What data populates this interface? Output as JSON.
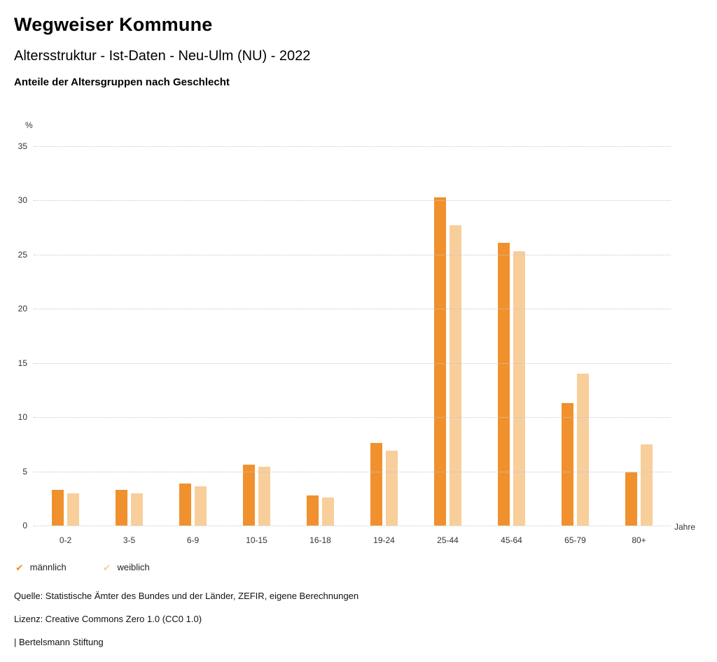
{
  "header": {
    "title": "Wegweiser Kommune",
    "subtitle": "Altersstruktur - Ist-Daten - Neu-Ulm (NU) - 2022",
    "subsubtitle": "Anteile der Altersgruppen nach Geschlecht"
  },
  "chart_data": {
    "type": "bar",
    "title": "Anteile der Altersgruppen nach Geschlecht",
    "unit_label": "%",
    "xlabel": "Jahre",
    "ylabel": "%",
    "categories": [
      "0-2",
      "3-5",
      "6-9",
      "10-15",
      "16-18",
      "19-24",
      "25-44",
      "45-64",
      "65-79",
      "80+"
    ],
    "series": [
      {
        "name": "männlich",
        "color": "#F0912D",
        "values": [
          3.3,
          3.3,
          3.9,
          5.6,
          2.8,
          7.6,
          30.3,
          26.1,
          11.3,
          4.9
        ]
      },
      {
        "name": "weiblich",
        "color": "#F8CE9B",
        "values": [
          3.0,
          3.0,
          3.6,
          5.4,
          2.6,
          6.9,
          27.7,
          25.3,
          14.0,
          7.5
        ]
      }
    ],
    "ylim": [
      0,
      35
    ],
    "ytick_step": 5,
    "grid": true,
    "legend_position": "bottom",
    "legend_icon": "✔"
  },
  "footer": {
    "source": "Quelle: Statistische Ämter des Bundes und der Länder, ZEFIR, eigene Berechnungen",
    "license": "Lizenz: Creative Commons Zero 1.0 (CC0 1.0)",
    "attribution": "| Bertelsmann Stiftung"
  }
}
